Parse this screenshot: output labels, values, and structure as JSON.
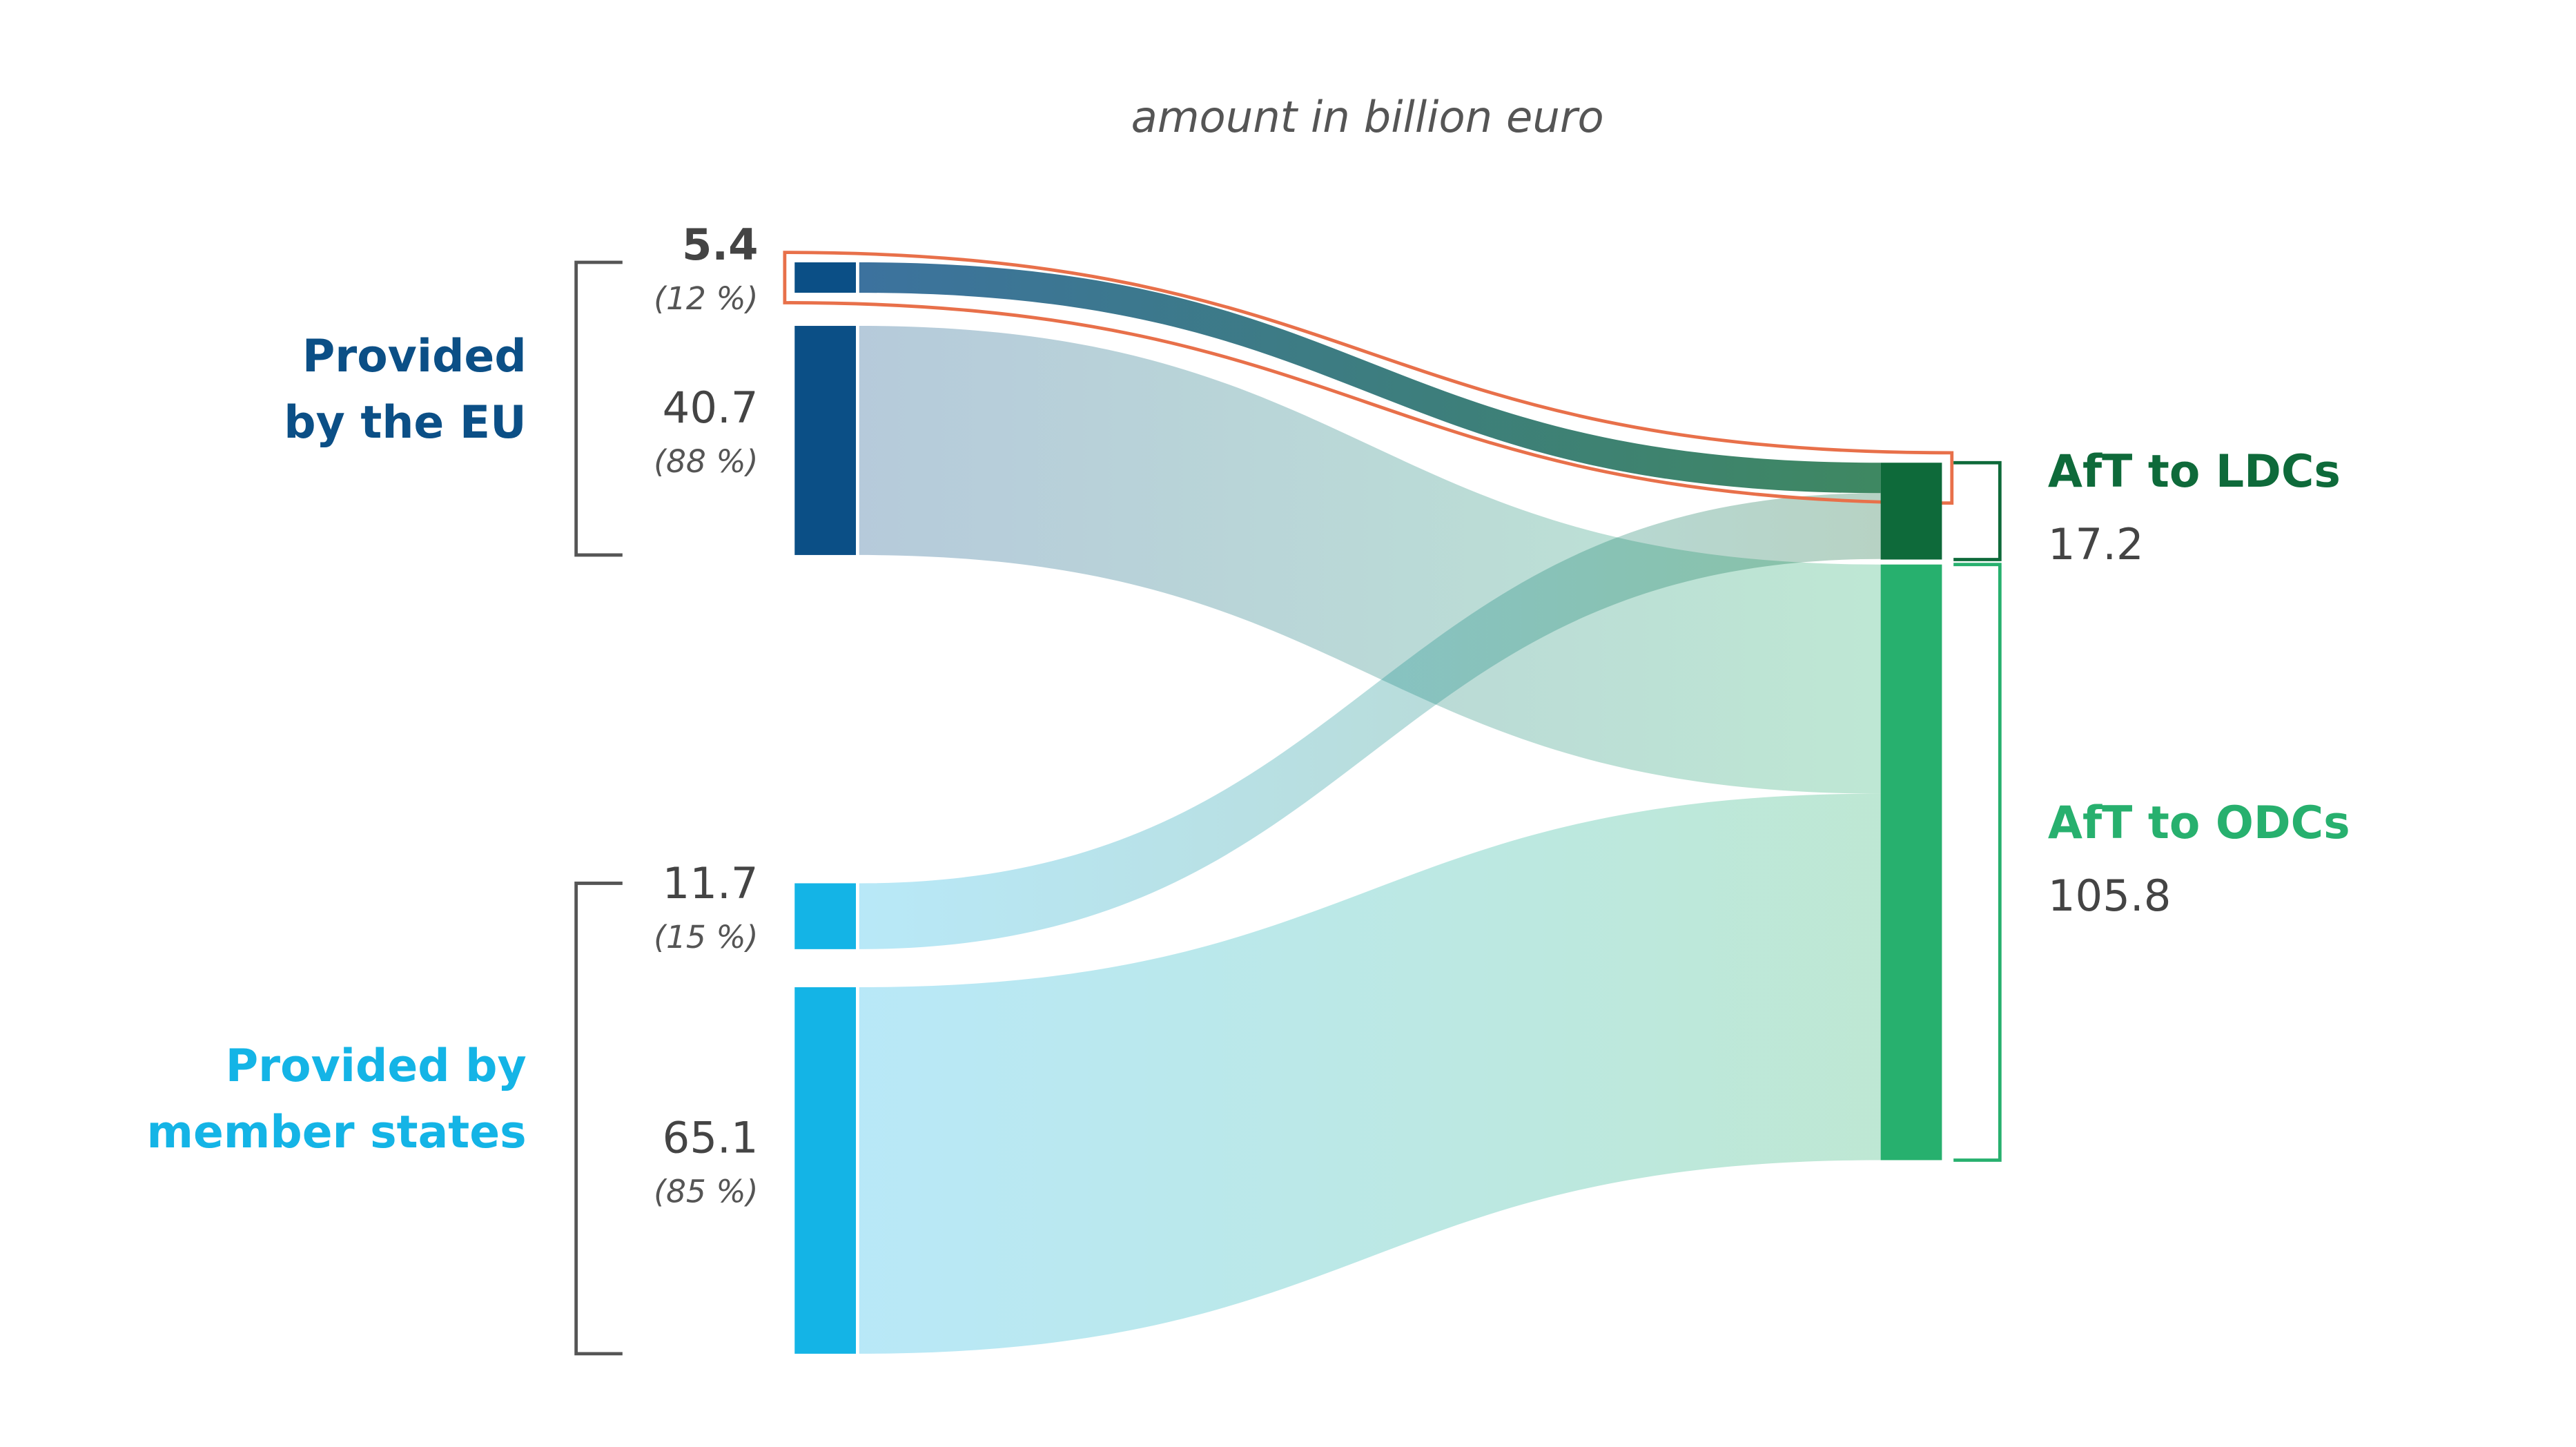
{
  "chart_data": {
    "type": "sankey",
    "subtitle": "amount in billion euro",
    "highlight_color": "#e8704a",
    "sources": [
      {
        "name": "Provided\nby the EU",
        "color": "#0b4f86",
        "flows": [
          {
            "value": 5.4,
            "share_label": "(12 %)",
            "highlighted": true
          },
          {
            "value": 40.7,
            "share_label": "(88 %)"
          }
        ]
      },
      {
        "name": "Provided by\nmember states",
        "color": "#14b4e6",
        "flows": [
          {
            "value": 11.7,
            "share_label": "(15 %)"
          },
          {
            "value": 65.1,
            "share_label": "(85 %)"
          }
        ]
      }
    ],
    "targets": [
      {
        "name": "AfT to LDCs",
        "value": 17.2,
        "color": "#0e6a3a"
      },
      {
        "name": "AfT to ODCs",
        "value": 105.8,
        "color": "#27b06e"
      }
    ]
  }
}
